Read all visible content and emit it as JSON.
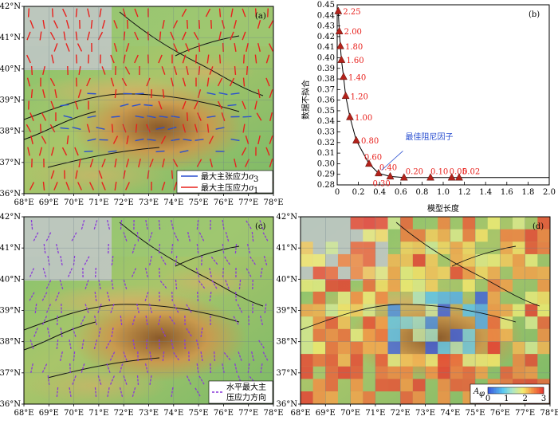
{
  "map_ticks": {
    "lon": [
      "68°E",
      "69°E",
      "70°E",
      "71°E",
      "72°E",
      "73°E",
      "74°E",
      "75°E",
      "76°E",
      "77°E",
      "78°E"
    ],
    "lat": [
      "42°N",
      "41°N",
      "40°N",
      "39°N",
      "38°N",
      "37°N",
      "36°N"
    ]
  },
  "panel_a": {
    "tag": "(a)",
    "legend_blue": "最大主张应力",
    "legend_blue_sym": "σ",
    "legend_blue_sub": "3",
    "legend_red": "最大主压应力",
    "legend_red_sym": "σ",
    "legend_red_sub": "1"
  },
  "panel_c": {
    "tag": "(c)",
    "legend_line1": "水平最大主",
    "legend_line2": "压应力方向"
  },
  "panel_d": {
    "tag": "(d)",
    "cb_label": "A",
    "cb_sub": "φ",
    "cb_ticks": [
      "0",
      "1",
      "2",
      "3"
    ]
  },
  "colors": {
    "red": "#e8201c",
    "blue": "#2a4fd0",
    "purple": "#8a3ad8",
    "curve": "#000000"
  },
  "chart_data": {
    "type": "scatter",
    "tag": "(b)",
    "xlabel": "模型长度",
    "ylabel": "数据不拟合",
    "xlim": [
      0,
      2.0
    ],
    "ylim": [
      0.28,
      0.45
    ],
    "xticks": [
      "0",
      "0.2",
      "0.4",
      "0.6",
      "0.8",
      "1.0",
      "1.2",
      "1.4",
      "1.6",
      "1.8",
      "2.0"
    ],
    "yticks": [
      "0.28",
      "0.29",
      "0.30",
      "0.31",
      "0.32",
      "0.33",
      "0.34",
      "0.35",
      "0.36",
      "0.37",
      "0.38",
      "0.39",
      "0.40",
      "0.41",
      "0.42",
      "0.43",
      "0.44",
      "0.45"
    ],
    "points": [
      {
        "x": 0.01,
        "y": 0.444,
        "label": "2.25"
      },
      {
        "x": 0.02,
        "y": 0.425,
        "label": "2.00"
      },
      {
        "x": 0.03,
        "y": 0.411,
        "label": "1.80"
      },
      {
        "x": 0.04,
        "y": 0.398,
        "label": "1.60"
      },
      {
        "x": 0.06,
        "y": 0.382,
        "label": "1.40"
      },
      {
        "x": 0.08,
        "y": 0.364,
        "label": "1.20"
      },
      {
        "x": 0.12,
        "y": 0.344,
        "label": "1.00"
      },
      {
        "x": 0.18,
        "y": 0.322,
        "label": "0.80"
      },
      {
        "x": 0.3,
        "y": 0.3,
        "label": "0.60"
      },
      {
        "x": 0.39,
        "y": 0.291,
        "label": "0.40"
      },
      {
        "x": 0.5,
        "y": 0.288,
        "label": "0.30"
      },
      {
        "x": 0.63,
        "y": 0.287,
        "label": "0.20"
      },
      {
        "x": 0.88,
        "y": 0.287,
        "label": "0.10"
      },
      {
        "x": 1.08,
        "y": 0.287,
        "label": "0.05"
      },
      {
        "x": 1.15,
        "y": 0.287,
        "label": "0.02"
      }
    ],
    "tail_to": 2.0,
    "best_label": "最佳阻尼因子",
    "best_point": {
      "x": 0.39,
      "y": 0.291
    }
  }
}
